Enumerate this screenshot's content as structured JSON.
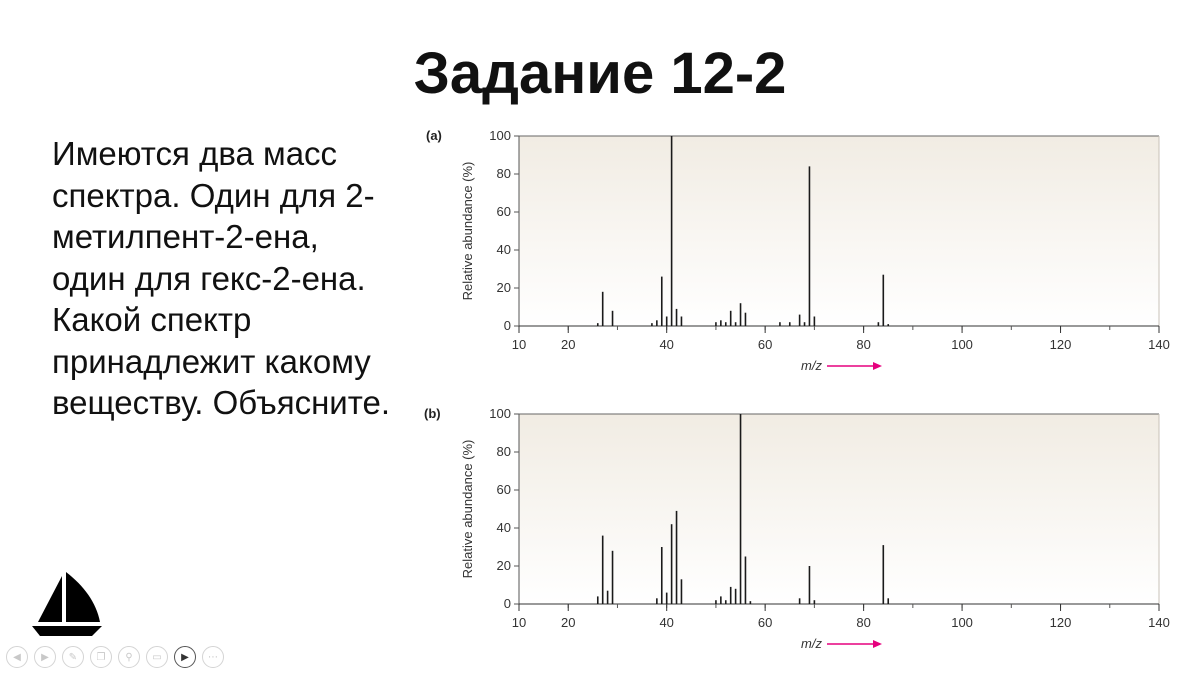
{
  "slide": {
    "title": "Задание 12-2",
    "question_lines": [
      "Имеются два масс",
      "спектра. Один для 2-",
      "метилпент-2-ена,",
      "один для гекс-2-ена.",
      "Какой спектр",
      "принадлежит какому",
      "веществу. Объясните."
    ]
  },
  "icons": {
    "boat": "sailboat-icon",
    "controls": [
      "prev-icon",
      "next-icon",
      "pen-icon",
      "copy-icon",
      "zoom-icon",
      "subtitles-icon",
      "video-icon",
      "more-icon"
    ]
  },
  "chart_data": [
    {
      "type": "bar",
      "panel_label": "(a)",
      "xlabel": "m/z",
      "ylabel": "Relative abundance (%)",
      "xlim": [
        10,
        140
      ],
      "ylim": [
        0,
        100
      ],
      "xticks": [
        10,
        20,
        40,
        60,
        80,
        100,
        120,
        140
      ],
      "yticks": [
        0,
        20,
        40,
        60,
        80,
        100
      ],
      "grid": false,
      "background": "#f1ece3",
      "x": [
        26,
        27,
        29,
        37,
        38,
        39,
        40,
        41,
        42,
        43,
        50,
        51,
        52,
        53,
        54,
        55,
        56,
        63,
        65,
        67,
        68,
        69,
        70,
        83,
        84,
        85
      ],
      "values": [
        1.5,
        18,
        8,
        1.5,
        3,
        26,
        5,
        100,
        9,
        5,
        2,
        3,
        2,
        8,
        2,
        12,
        7,
        2,
        2,
        6,
        2,
        84,
        5,
        2,
        27,
        1
      ]
    },
    {
      "type": "bar",
      "panel_label": "(b)",
      "xlabel": "m/z",
      "ylabel": "Relative abundance (%)",
      "xlim": [
        10,
        140
      ],
      "ylim": [
        0,
        100
      ],
      "xticks": [
        10,
        20,
        40,
        60,
        80,
        100,
        120,
        140
      ],
      "yticks": [
        0,
        20,
        40,
        60,
        80,
        100
      ],
      "grid": false,
      "background": "#f1ece3",
      "x": [
        26,
        27,
        28,
        29,
        38,
        39,
        40,
        41,
        42,
        43,
        50,
        51,
        52,
        53,
        54,
        55,
        56,
        57,
        67,
        69,
        70,
        84,
        85
      ],
      "values": [
        4,
        36,
        7,
        28,
        3,
        30,
        6,
        42,
        49,
        13,
        2,
        4,
        2,
        9,
        8,
        100,
        25,
        1.5,
        3,
        20,
        2,
        31,
        3
      ]
    }
  ]
}
